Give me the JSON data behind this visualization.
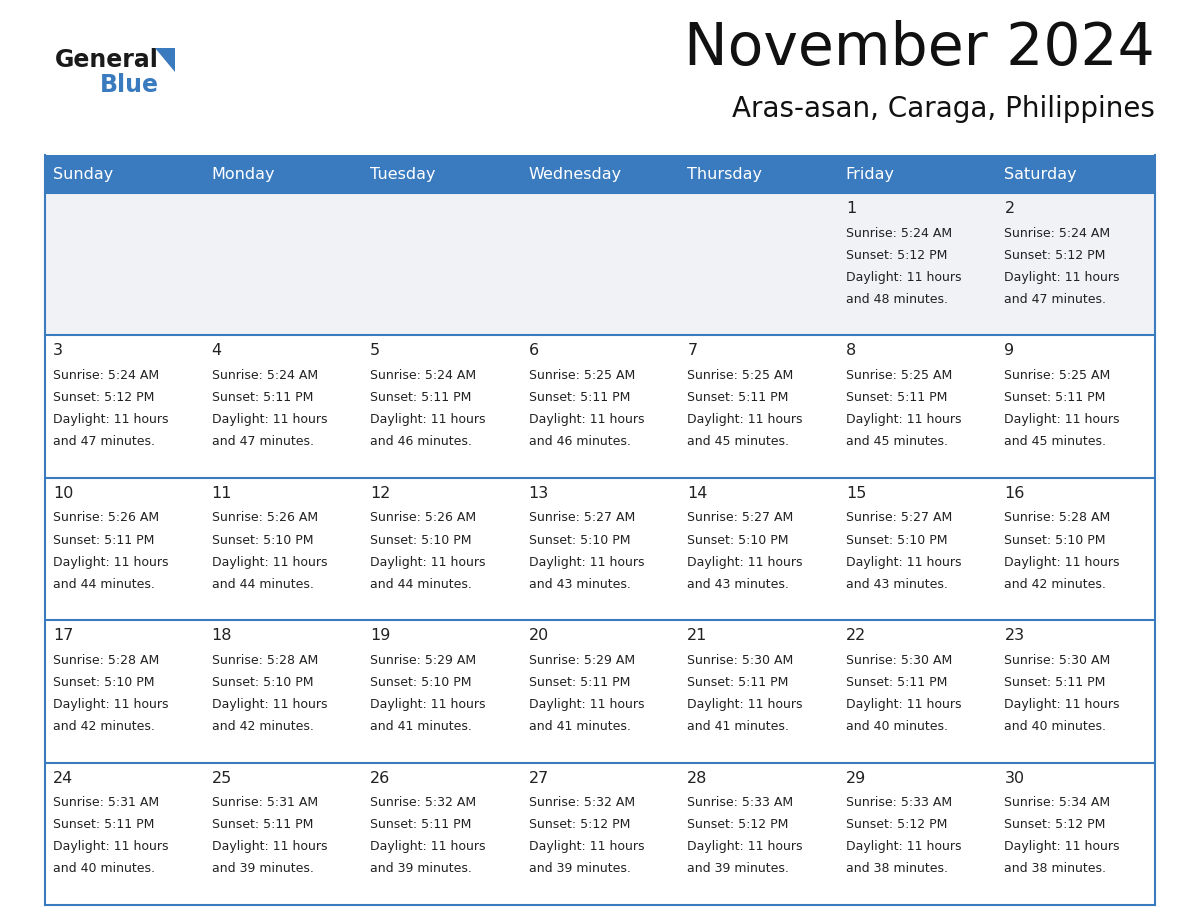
{
  "title": "November 2024",
  "subtitle": "Aras-asan, Caraga, Philippines",
  "header_color": "#3a7bbf",
  "header_text_color": "#ffffff",
  "row1_bg": "#f0f2f5",
  "cell_bg": "#ffffff",
  "border_color": "#3a7bbf",
  "text_color": "#222222",
  "day_names": [
    "Sunday",
    "Monday",
    "Tuesday",
    "Wednesday",
    "Thursday",
    "Friday",
    "Saturday"
  ],
  "calendar_data": [
    [
      {
        "day": "",
        "sunrise": "",
        "sunset": "",
        "daylight": ""
      },
      {
        "day": "",
        "sunrise": "",
        "sunset": "",
        "daylight": ""
      },
      {
        "day": "",
        "sunrise": "",
        "sunset": "",
        "daylight": ""
      },
      {
        "day": "",
        "sunrise": "",
        "sunset": "",
        "daylight": ""
      },
      {
        "day": "",
        "sunrise": "",
        "sunset": "",
        "daylight": ""
      },
      {
        "day": "1",
        "sunrise": "5:24 AM",
        "sunset": "5:12 PM",
        "daylight": "11 hours and 48 minutes."
      },
      {
        "day": "2",
        "sunrise": "5:24 AM",
        "sunset": "5:12 PM",
        "daylight": "11 hours and 47 minutes."
      }
    ],
    [
      {
        "day": "3",
        "sunrise": "5:24 AM",
        "sunset": "5:12 PM",
        "daylight": "11 hours and 47 minutes."
      },
      {
        "day": "4",
        "sunrise": "5:24 AM",
        "sunset": "5:11 PM",
        "daylight": "11 hours and 47 minutes."
      },
      {
        "day": "5",
        "sunrise": "5:24 AM",
        "sunset": "5:11 PM",
        "daylight": "11 hours and 46 minutes."
      },
      {
        "day": "6",
        "sunrise": "5:25 AM",
        "sunset": "5:11 PM",
        "daylight": "11 hours and 46 minutes."
      },
      {
        "day": "7",
        "sunrise": "5:25 AM",
        "sunset": "5:11 PM",
        "daylight": "11 hours and 45 minutes."
      },
      {
        "day": "8",
        "sunrise": "5:25 AM",
        "sunset": "5:11 PM",
        "daylight": "11 hours and 45 minutes."
      },
      {
        "day": "9",
        "sunrise": "5:25 AM",
        "sunset": "5:11 PM",
        "daylight": "11 hours and 45 minutes."
      }
    ],
    [
      {
        "day": "10",
        "sunrise": "5:26 AM",
        "sunset": "5:11 PM",
        "daylight": "11 hours and 44 minutes."
      },
      {
        "day": "11",
        "sunrise": "5:26 AM",
        "sunset": "5:10 PM",
        "daylight": "11 hours and 44 minutes."
      },
      {
        "day": "12",
        "sunrise": "5:26 AM",
        "sunset": "5:10 PM",
        "daylight": "11 hours and 44 minutes."
      },
      {
        "day": "13",
        "sunrise": "5:27 AM",
        "sunset": "5:10 PM",
        "daylight": "11 hours and 43 minutes."
      },
      {
        "day": "14",
        "sunrise": "5:27 AM",
        "sunset": "5:10 PM",
        "daylight": "11 hours and 43 minutes."
      },
      {
        "day": "15",
        "sunrise": "5:27 AM",
        "sunset": "5:10 PM",
        "daylight": "11 hours and 43 minutes."
      },
      {
        "day": "16",
        "sunrise": "5:28 AM",
        "sunset": "5:10 PM",
        "daylight": "11 hours and 42 minutes."
      }
    ],
    [
      {
        "day": "17",
        "sunrise": "5:28 AM",
        "sunset": "5:10 PM",
        "daylight": "11 hours and 42 minutes."
      },
      {
        "day": "18",
        "sunrise": "5:28 AM",
        "sunset": "5:10 PM",
        "daylight": "11 hours and 42 minutes."
      },
      {
        "day": "19",
        "sunrise": "5:29 AM",
        "sunset": "5:10 PM",
        "daylight": "11 hours and 41 minutes."
      },
      {
        "day": "20",
        "sunrise": "5:29 AM",
        "sunset": "5:11 PM",
        "daylight": "11 hours and 41 minutes."
      },
      {
        "day": "21",
        "sunrise": "5:30 AM",
        "sunset": "5:11 PM",
        "daylight": "11 hours and 41 minutes."
      },
      {
        "day": "22",
        "sunrise": "5:30 AM",
        "sunset": "5:11 PM",
        "daylight": "11 hours and 40 minutes."
      },
      {
        "day": "23",
        "sunrise": "5:30 AM",
        "sunset": "5:11 PM",
        "daylight": "11 hours and 40 minutes."
      }
    ],
    [
      {
        "day": "24",
        "sunrise": "5:31 AM",
        "sunset": "5:11 PM",
        "daylight": "11 hours and 40 minutes."
      },
      {
        "day": "25",
        "sunrise": "5:31 AM",
        "sunset": "5:11 PM",
        "daylight": "11 hours and 39 minutes."
      },
      {
        "day": "26",
        "sunrise": "5:32 AM",
        "sunset": "5:11 PM",
        "daylight": "11 hours and 39 minutes."
      },
      {
        "day": "27",
        "sunrise": "5:32 AM",
        "sunset": "5:12 PM",
        "daylight": "11 hours and 39 minutes."
      },
      {
        "day": "28",
        "sunrise": "5:33 AM",
        "sunset": "5:12 PM",
        "daylight": "11 hours and 39 minutes."
      },
      {
        "day": "29",
        "sunrise": "5:33 AM",
        "sunset": "5:12 PM",
        "daylight": "11 hours and 38 minutes."
      },
      {
        "day": "30",
        "sunrise": "5:34 AM",
        "sunset": "5:12 PM",
        "daylight": "11 hours and 38 minutes."
      }
    ]
  ]
}
